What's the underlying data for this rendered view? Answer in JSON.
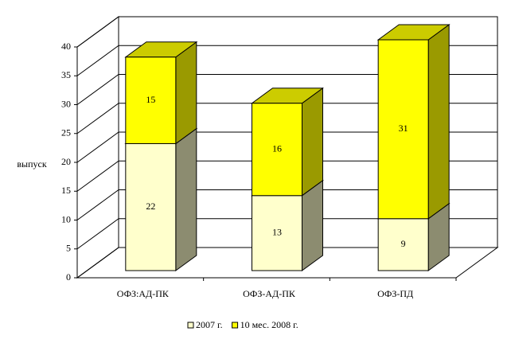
{
  "chart_data": {
    "type": "bar3d-stacked",
    "y_label": "выпуск",
    "categories": [
      "ОФЗ:АД-ПК",
      "ОФЗ-АД-ПК",
      "ОФЗ-ПД"
    ],
    "series": [
      {
        "name": "2007 г.",
        "color": "#ffffcc",
        "side_color": "#8c8c70",
        "values": [
          22,
          13,
          9
        ]
      },
      {
        "name": "10 мес. 2008 г.",
        "color": "#ffff00",
        "side_color": "#9a9a00",
        "values": [
          15,
          16,
          31
        ]
      }
    ],
    "ylim": [
      0,
      40
    ],
    "yticks": [
      0,
      5,
      10,
      15,
      20,
      25,
      30,
      35,
      40
    ],
    "grid": true,
    "legend": "bottom"
  }
}
